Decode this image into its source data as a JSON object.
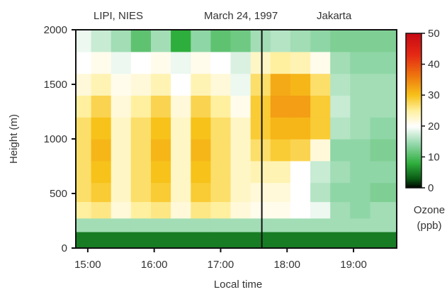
{
  "chart_data": {
    "type": "heatmap",
    "header": {
      "left": "LIPI, NIES",
      "center": "March 24, 1997",
      "right": "Jakarta"
    },
    "xlabel": "Local time",
    "ylabel": "Height (m)",
    "x_ticks": [
      "15:00",
      "16:00",
      "17:00",
      "18:00",
      "19:00"
    ],
    "x_tick_hours": [
      15,
      16,
      17,
      18,
      19
    ],
    "xlim_hours": [
      14.82,
      19.65
    ],
    "y_ticks": [
      "0",
      "500",
      "1000",
      "1500",
      "2000"
    ],
    "y_tick_values": [
      0,
      500,
      1000,
      1500,
      2000
    ],
    "ylim": [
      0,
      2000
    ],
    "colorbar": {
      "label_line1": "Ozone",
      "label_line2": "(ppb)",
      "ticks": [
        "0",
        "10",
        "20",
        "30",
        "40",
        "50"
      ],
      "tick_values": [
        0,
        10,
        20,
        30,
        40,
        50
      ],
      "range": [
        0,
        50
      ],
      "stops": [
        {
          "value": 0,
          "color": "#000000"
        },
        {
          "value": 3,
          "color": "#0a5a14"
        },
        {
          "value": 8,
          "color": "#2eae3c"
        },
        {
          "value": 14,
          "color": "#8fd6a6"
        },
        {
          "value": 20,
          "color": "#ffffff"
        },
        {
          "value": 25,
          "color": "#fff0a0"
        },
        {
          "value": 30,
          "color": "#f7c21a"
        },
        {
          "value": 36,
          "color": "#ef7a0e"
        },
        {
          "value": 43,
          "color": "#e52a14"
        },
        {
          "value": 50,
          "color": "#c80a14"
        }
      ]
    },
    "vertical_marker_hour": 17.62,
    "grid": false,
    "ozone_ppb_estimated": {
      "time_hours": [
        14.9,
        15.2,
        15.5,
        15.8,
        16.1,
        16.4,
        16.7,
        17.0,
        17.3,
        17.6,
        17.9,
        18.2,
        18.5,
        18.8,
        19.1,
        19.4
      ],
      "heights_m": [
        100,
        200,
        350,
        500,
        700,
        900,
        1100,
        1300,
        1500,
        1700,
        1900
      ],
      "values": [
        [
          5,
          5,
          5,
          5,
          5,
          5,
          5,
          5,
          5,
          5,
          5,
          5,
          5,
          5,
          5,
          5
        ],
        [
          15,
          15,
          15,
          15,
          15,
          15,
          15,
          15,
          15,
          15,
          15,
          15,
          15,
          15,
          15,
          15
        ],
        [
          25,
          26,
          22,
          25,
          26,
          22,
          26,
          25,
          22,
          21,
          21,
          20,
          19,
          15,
          14,
          15
        ],
        [
          27,
          29,
          23,
          27,
          29,
          23,
          29,
          27,
          23,
          22,
          22,
          20,
          16,
          14,
          14,
          13
        ],
        [
          27,
          30,
          23,
          27,
          30,
          23,
          30,
          27,
          23,
          24,
          24,
          20,
          17,
          15,
          14,
          14
        ],
        [
          27,
          31,
          23,
          27,
          31,
          23,
          31,
          27,
          23,
          27,
          29,
          28,
          22,
          14,
          14,
          13
        ],
        [
          27,
          30,
          23,
          27,
          30,
          23,
          30,
          27,
          23,
          29,
          31,
          31,
          29,
          16,
          15,
          14
        ],
        [
          25,
          28,
          22,
          25,
          28,
          22,
          28,
          25,
          21,
          29,
          33,
          33,
          29,
          17,
          15,
          15
        ],
        [
          22,
          24,
          21,
          22,
          24,
          20,
          24,
          22,
          19,
          27,
          32,
          31,
          27,
          16,
          15,
          15
        ],
        [
          20,
          21,
          19,
          20,
          21,
          19,
          21,
          20,
          18,
          23,
          25,
          24,
          21,
          15,
          14,
          14
        ],
        [
          19,
          17,
          15,
          11,
          15,
          8,
          14,
          11,
          12,
          15,
          16,
          15,
          14,
          13,
          13,
          13
        ]
      ]
    }
  }
}
